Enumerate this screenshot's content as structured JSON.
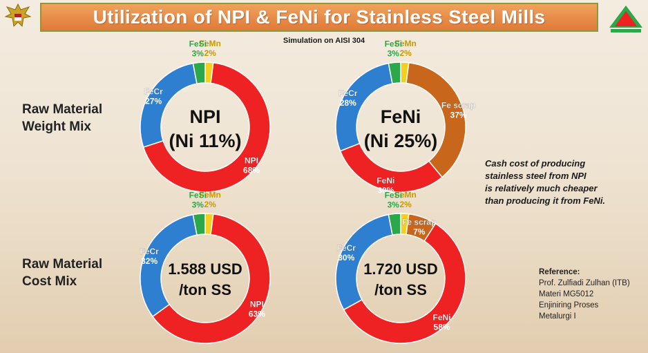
{
  "title": "Utilization of NPI & FeNi for Stainless Steel Mills",
  "subtitle": "Simulation on AISI 304",
  "row_labels": {
    "weight": [
      "Raw Material",
      "Weight Mix"
    ],
    "cost": [
      "Raw Material",
      "Cost Mix"
    ]
  },
  "note": [
    "Cash cost of producing",
    "stainless steel from NPI",
    "is relatively much cheaper",
    "than producing it from FeNi."
  ],
  "reference": {
    "title": "Reference:",
    "lines": [
      "Prof. Zulfiadi Zulhan (ITB)",
      "Materi MG5012",
      "Enjiniring Proses",
      "Metalurgi I"
    ]
  },
  "colors": {
    "NPI": "#ee2222",
    "FeNi": "#ee2222",
    "FeCr": "#2f7fd0",
    "FeSi": "#2aa84a",
    "FeMn": "#f2d01e",
    "Fe scrap": "#c8661c"
  },
  "chart_data": [
    {
      "type": "pie",
      "center_label": [
        "NPI",
        "(Ni 11%)"
      ],
      "slices": [
        {
          "name": "FeMn",
          "value": 2,
          "label": "2%"
        },
        {
          "name": "NPI",
          "value": 68,
          "label": "68%"
        },
        {
          "name": "FeCr",
          "value": 27,
          "label": "27%"
        },
        {
          "name": "FeSi",
          "value": 3,
          "label": "3%"
        }
      ]
    },
    {
      "type": "pie",
      "center_label": [
        "FeNi",
        "(Ni 25%)"
      ],
      "slices": [
        {
          "name": "FeMn",
          "value": 2,
          "label": "2%"
        },
        {
          "name": "Fe scrap",
          "value": 37,
          "label": "37%"
        },
        {
          "name": "FeNi",
          "value": 30,
          "label": "30%"
        },
        {
          "name": "FeCr",
          "value": 28,
          "label": "28%"
        },
        {
          "name": "FeSi",
          "value": 3,
          "label": "3%"
        }
      ]
    },
    {
      "type": "pie",
      "center_label": [
        "1.588 USD",
        "/ton SS"
      ],
      "slices": [
        {
          "name": "FeMn",
          "value": 2,
          "label": "2%"
        },
        {
          "name": "NPI",
          "value": 63,
          "label": "63%"
        },
        {
          "name": "FeCr",
          "value": 32,
          "label": "32%"
        },
        {
          "name": "FeSi",
          "value": 3,
          "label": "3%"
        }
      ]
    },
    {
      "type": "pie",
      "center_label": [
        "1.720 USD",
        "/ton SS"
      ],
      "slices": [
        {
          "name": "FeMn",
          "value": 2,
          "label": "2%"
        },
        {
          "name": "Fe scrap",
          "value": 7,
          "label": "7%"
        },
        {
          "name": "FeNi",
          "value": 58,
          "label": "58%"
        },
        {
          "name": "FeCr",
          "value": 30,
          "label": "30%"
        },
        {
          "name": "FeSi",
          "value": 3,
          "label": "3%"
        }
      ]
    }
  ]
}
